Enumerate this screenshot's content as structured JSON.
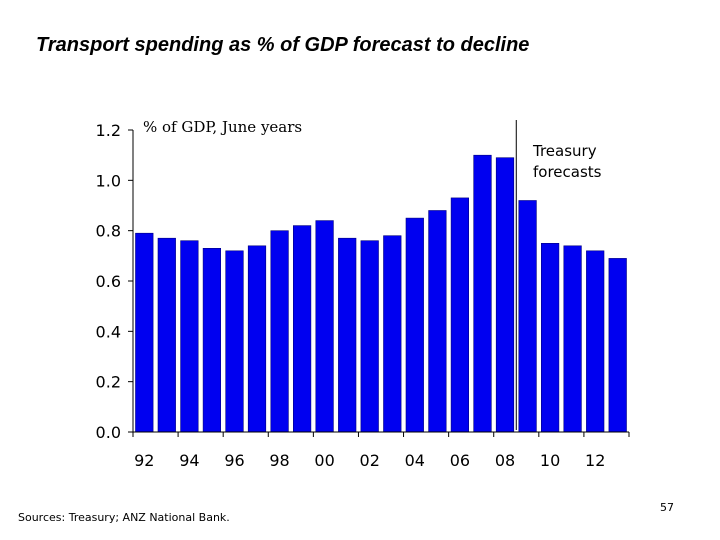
{
  "slide": {
    "title": "Transport spending as % of GDP forecast to decline",
    "source": "Sources:  Treasury; ANZ National Bank.",
    "page_number": "57"
  },
  "colors": {
    "bar": "#0000f0",
    "bar_outline": "#000080",
    "axis": "#000000"
  },
  "chart_data": {
    "type": "bar",
    "unit_label": "% of GDP, June years",
    "annotation": [
      "Treasury",
      "forecasts"
    ],
    "forecast_start_after": "2008",
    "categories": [
      "1992",
      "1993",
      "1994",
      "1995",
      "1996",
      "1997",
      "1998",
      "1999",
      "2000",
      "2001",
      "2002",
      "2003",
      "2004",
      "2005",
      "2006",
      "2007",
      "2008",
      "2009",
      "2010",
      "2011",
      "2012",
      "2013"
    ],
    "values": [
      0.79,
      0.77,
      0.76,
      0.73,
      0.72,
      0.74,
      0.8,
      0.82,
      0.84,
      0.77,
      0.76,
      0.78,
      0.85,
      0.88,
      0.93,
      1.1,
      1.09,
      0.92,
      0.75,
      0.74,
      0.72,
      0.69
    ],
    "x_tick_labels": [
      "92",
      "94",
      "96",
      "98",
      "00",
      "02",
      "04",
      "06",
      "08",
      "10",
      "12"
    ],
    "y_ticks": [
      0.0,
      0.2,
      0.4,
      0.6,
      0.8,
      1.0,
      1.2
    ],
    "y_tick_labels": [
      "0.0",
      "0.2",
      "0.4",
      "0.6",
      "0.8",
      "1.0",
      "1.2"
    ],
    "ylim": [
      0,
      1.2
    ],
    "grid": false,
    "legend": "none"
  }
}
